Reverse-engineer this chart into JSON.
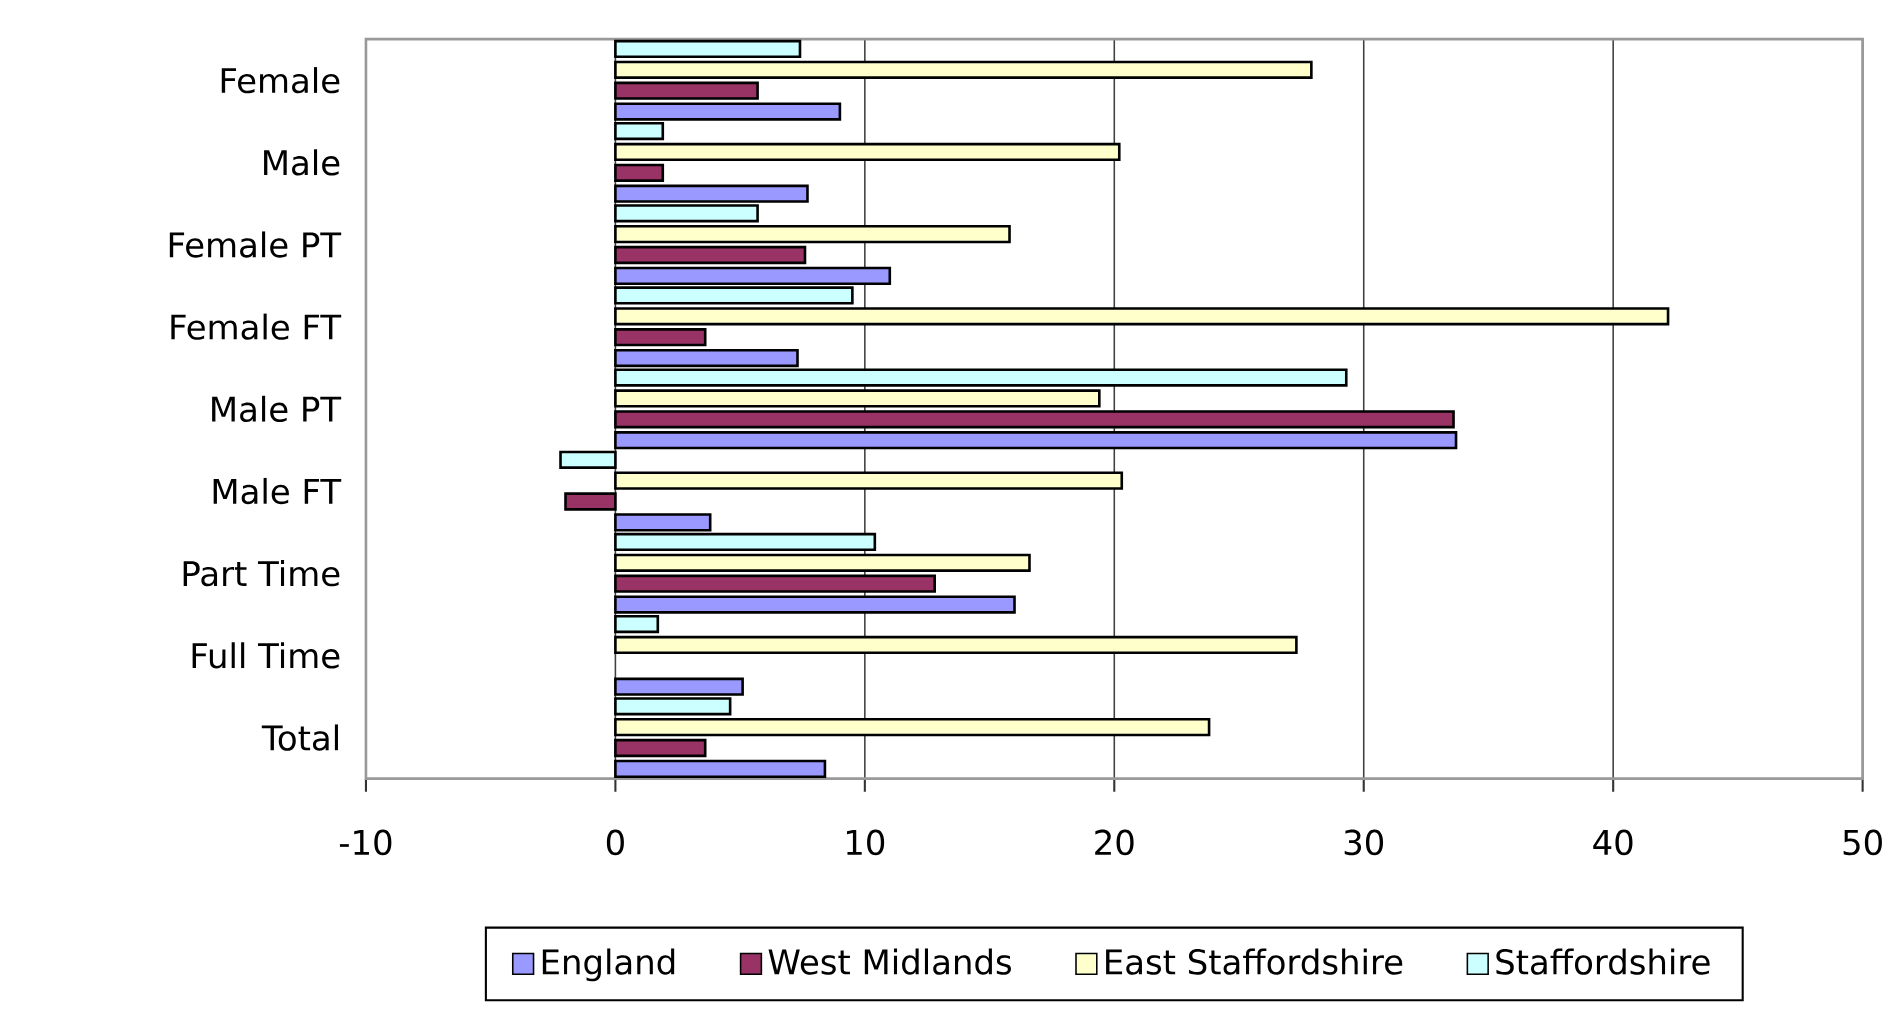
{
  "chart_data": {
    "type": "bar",
    "orientation": "horizontal",
    "categories": [
      "Female",
      "Male",
      "Female PT",
      "Female FT",
      "Male PT",
      "Male FT",
      "Part Time",
      "Full Time",
      "Total"
    ],
    "series": [
      {
        "name": "England",
        "color": "#9999ff",
        "values": [
          9.0,
          7.7,
          11.0,
          7.3,
          33.7,
          3.8,
          16.0,
          5.1,
          8.4
        ]
      },
      {
        "name": "West Midlands",
        "color": "#993366",
        "values": [
          5.7,
          1.9,
          7.6,
          3.6,
          33.6,
          -2.0,
          12.8,
          null,
          3.6
        ]
      },
      {
        "name": "East Staffordshire",
        "color": "#ffffcc",
        "values": [
          27.9,
          20.2,
          15.8,
          42.2,
          19.4,
          20.3,
          16.6,
          27.3,
          23.8
        ]
      },
      {
        "name": "Staffordshire",
        "color": "#ccffff",
        "values": [
          7.4,
          1.9,
          5.7,
          9.5,
          29.3,
          -2.2,
          10.4,
          1.7,
          4.6
        ]
      }
    ],
    "xlim": [
      -10,
      50
    ],
    "xticks": [
      -10,
      0,
      10,
      20,
      30,
      40,
      50
    ],
    "grid": "x",
    "legend": "bottom"
  }
}
